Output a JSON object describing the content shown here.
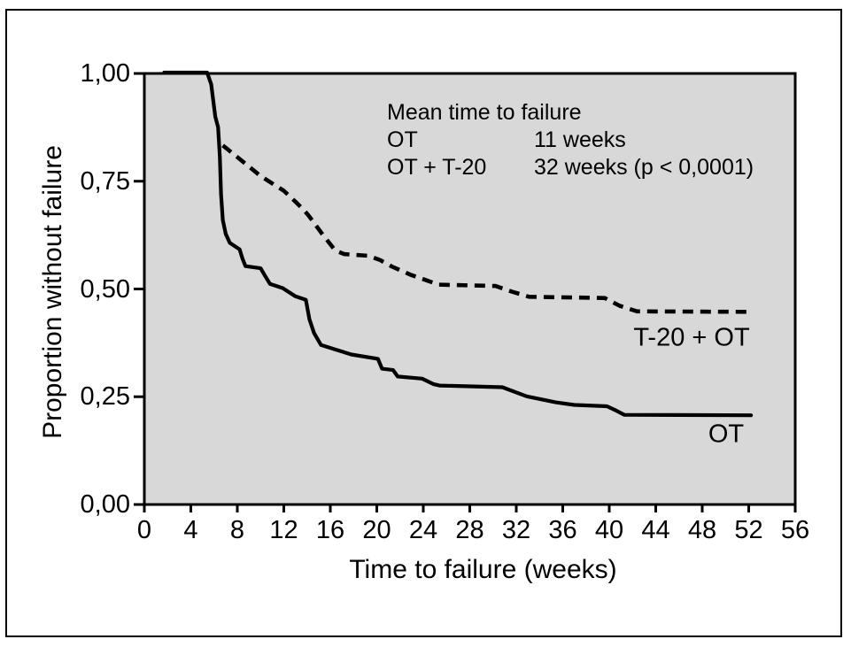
{
  "figure": {
    "page_bg": "#ffffff",
    "border_color": "#000000",
    "plot_bg": "#d8d8d8",
    "line_color": "#000000"
  },
  "chart_data": {
    "type": "line",
    "title": "",
    "xlabel": "Time to failure (weeks)",
    "ylabel": "Proportion without failure",
    "xlim": [
      0,
      56
    ],
    "ylim": [
      0,
      1
    ],
    "grid": false,
    "x_ticks": [
      0,
      4,
      8,
      12,
      16,
      20,
      24,
      28,
      32,
      36,
      40,
      44,
      48,
      52,
      56
    ],
    "y_ticks": [
      {
        "value": 1.0,
        "label": "1,00"
      },
      {
        "value": 0.75,
        "label": "0,75"
      },
      {
        "value": 0.5,
        "label": "0,50"
      },
      {
        "value": 0.25,
        "label": "0,25"
      },
      {
        "value": 0.0,
        "label": "0,00"
      }
    ],
    "series": [
      {
        "name": "OT",
        "label": "OT",
        "style": "solid",
        "points": [
          [
            1.7,
            1.002
          ],
          [
            5.4,
            1.002
          ],
          [
            5.75,
            0.975
          ],
          [
            6.1,
            0.9
          ],
          [
            6.35,
            0.875
          ],
          [
            6.5,
            0.805
          ],
          [
            6.6,
            0.72
          ],
          [
            6.75,
            0.66
          ],
          [
            7.0,
            0.628
          ],
          [
            7.35,
            0.607
          ],
          [
            8.2,
            0.592
          ],
          [
            8.45,
            0.57
          ],
          [
            8.7,
            0.553
          ],
          [
            10.0,
            0.548
          ],
          [
            10.4,
            0.53
          ],
          [
            10.8,
            0.512
          ],
          [
            11.9,
            0.502
          ],
          [
            13.0,
            0.483
          ],
          [
            13.9,
            0.475
          ],
          [
            14.2,
            0.43
          ],
          [
            14.6,
            0.398
          ],
          [
            15.2,
            0.37
          ],
          [
            17.8,
            0.348
          ],
          [
            20.1,
            0.338
          ],
          [
            20.45,
            0.315
          ],
          [
            21.4,
            0.312
          ],
          [
            21.8,
            0.297
          ],
          [
            23.9,
            0.292
          ],
          [
            24.9,
            0.279
          ],
          [
            25.4,
            0.276
          ],
          [
            30.8,
            0.272
          ],
          [
            32.9,
            0.251
          ],
          [
            35.4,
            0.237
          ],
          [
            37.0,
            0.231
          ],
          [
            39.8,
            0.228
          ],
          [
            40.5,
            0.219
          ],
          [
            41.3,
            0.208
          ],
          [
            52.2,
            0.207
          ]
        ]
      },
      {
        "name": "T-20 + OT",
        "label": "T-20 + OT",
        "style": "dashed",
        "points": [
          [
            6.75,
            0.833
          ],
          [
            8.0,
            0.806
          ],
          [
            10.0,
            0.762
          ],
          [
            12.0,
            0.728
          ],
          [
            13.1,
            0.7
          ],
          [
            13.7,
            0.684
          ],
          [
            14.2,
            0.668
          ],
          [
            15.3,
            0.628
          ],
          [
            16.4,
            0.59
          ],
          [
            17.2,
            0.581
          ],
          [
            19.3,
            0.577
          ],
          [
            20.3,
            0.567
          ],
          [
            21.3,
            0.552
          ],
          [
            22.9,
            0.533
          ],
          [
            24.3,
            0.52
          ],
          [
            25.3,
            0.51
          ],
          [
            30.2,
            0.507
          ],
          [
            31.6,
            0.494
          ],
          [
            33.1,
            0.482
          ],
          [
            39.6,
            0.479
          ],
          [
            40.9,
            0.461
          ],
          [
            42.4,
            0.448
          ],
          [
            51.8,
            0.447
          ]
        ]
      }
    ],
    "annotation": {
      "title": "Mean time to failure",
      "rows": [
        {
          "label": "OT",
          "value": "11 weeks"
        },
        {
          "label": "OT + T-20",
          "value": "32 weeks (p < 0,0001)"
        }
      ]
    }
  }
}
